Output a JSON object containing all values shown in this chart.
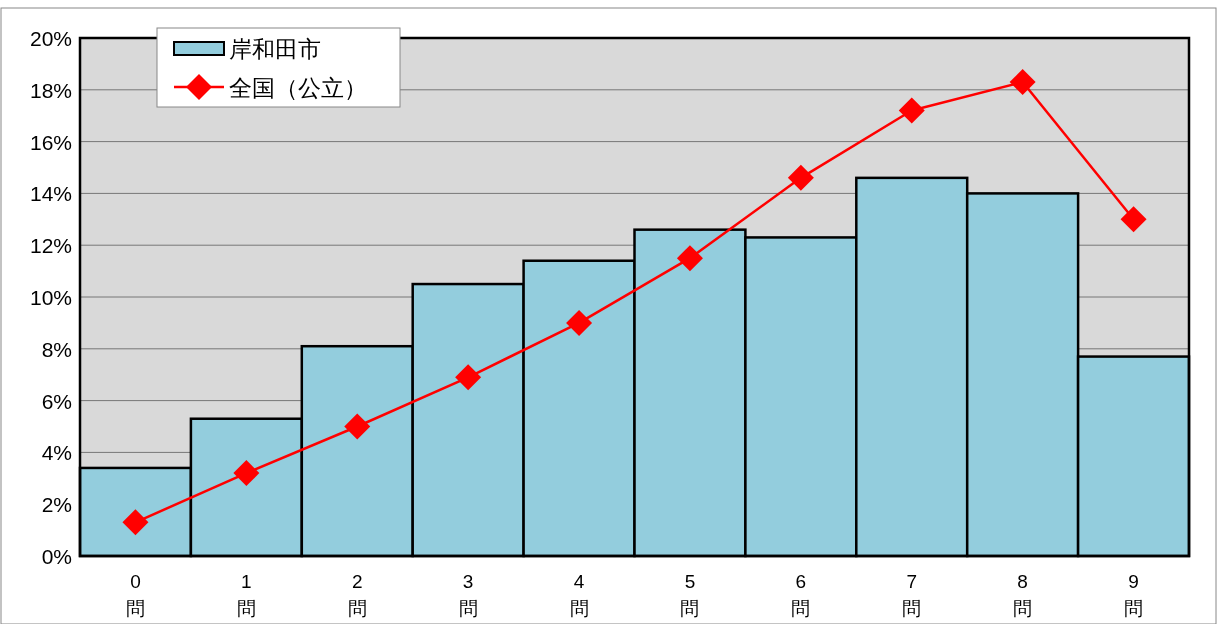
{
  "chart_data": {
    "type": "bar",
    "categories": [
      "0\n問",
      "1\n問",
      "2\n問",
      "3\n問",
      "4\n問",
      "5\n問",
      "6\n問",
      "7\n問",
      "8\n問",
      "9\n問"
    ],
    "series": [
      {
        "name": "岸和田市",
        "color": "#93cddd",
        "values": [
          3.4,
          5.3,
          8.1,
          10.5,
          11.4,
          12.6,
          12.3,
          14.6,
          14.0,
          7.7
        ]
      },
      {
        "name": "全国（公立）",
        "type": "line",
        "color": "#ff0000",
        "marker": "diamond",
        "values": [
          1.3,
          3.2,
          5.0,
          6.9,
          9.0,
          11.5,
          14.6,
          17.2,
          18.3,
          13.0
        ]
      }
    ],
    "ylim": [
      0,
      20
    ],
    "yticks": [
      {
        "value": 0,
        "label": "0%"
      },
      {
        "value": 2,
        "label": "2%"
      },
      {
        "value": 4,
        "label": "4%"
      },
      {
        "value": 6,
        "label": "6%"
      },
      {
        "value": 8,
        "label": "8%"
      },
      {
        "value": 10,
        "label": "10%"
      },
      {
        "value": 12,
        "label": "12%"
      },
      {
        "value": 14,
        "label": "14%"
      },
      {
        "value": 16,
        "label": "16%"
      },
      {
        "value": 18,
        "label": "18%"
      },
      {
        "value": 20,
        "label": "20%"
      }
    ],
    "grid": "y",
    "legend": "top left"
  }
}
